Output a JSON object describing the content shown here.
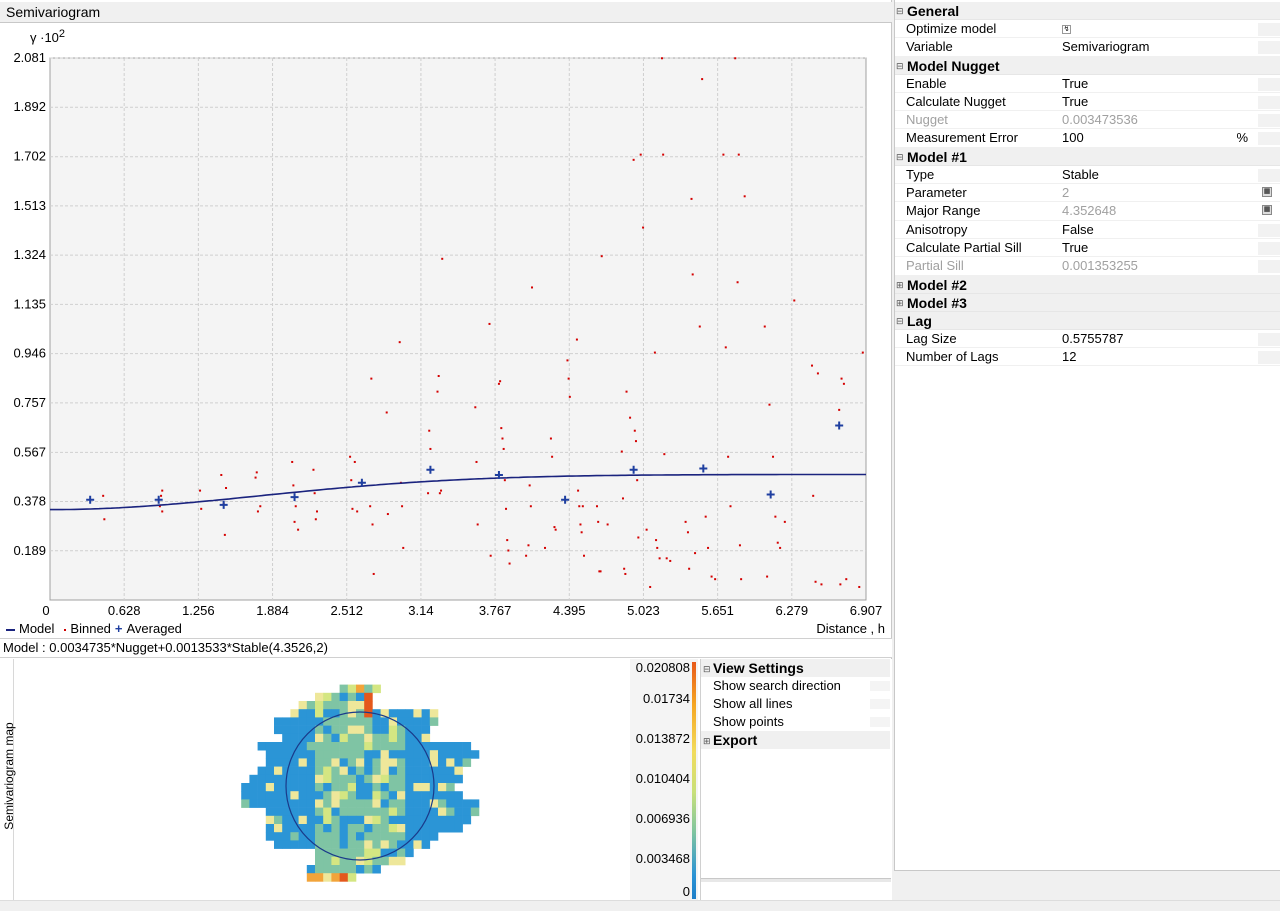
{
  "chart_title": "Semivariogram",
  "model_text": "Model : 0.0034735*Nugget+0.0013533*Stable(4.3526,2)",
  "chart_data": {
    "type": "scatter",
    "ylabel": "γ ·10",
    "ylabel_exp": "2",
    "xlabel": "Distance , h",
    "xlim": [
      0,
      6.907
    ],
    "ylim": [
      0,
      2.081
    ],
    "x_ticks": [
      "0",
      "0.628",
      "1.256",
      "1.884",
      "2.512",
      "3.14",
      "3.767",
      "4.395",
      "5.023",
      "5.651",
      "6.279",
      "6.907"
    ],
    "y_ticks": [
      "0.189",
      "0.378",
      "0.567",
      "0.757",
      "0.946",
      "1.135",
      "1.324",
      "1.513",
      "1.702",
      "1.892",
      "2.081"
    ],
    "legend": [
      "Model",
      "Binned",
      "Averaged"
    ],
    "averaged": [
      [
        0.34,
        0.385
      ],
      [
        0.92,
        0.385
      ],
      [
        1.47,
        0.365
      ],
      [
        2.07,
        0.395
      ],
      [
        2.64,
        0.45
      ],
      [
        3.22,
        0.5
      ],
      [
        3.8,
        0.48
      ],
      [
        4.36,
        0.385
      ],
      [
        4.94,
        0.5
      ],
      [
        5.53,
        0.505
      ],
      [
        6.1,
        0.405
      ],
      [
        6.68,
        0.67
      ]
    ],
    "model": {
      "nugget": 0.347,
      "partial_sill": 0.135,
      "range": 4.3526,
      "shape": 2
    },
    "binned": [
      [
        0.45,
        0.4
      ],
      [
        0.46,
        0.31
      ],
      [
        0.93,
        0.36
      ],
      [
        0.94,
        0.4
      ],
      [
        0.95,
        0.42
      ],
      [
        0.95,
        0.34
      ],
      [
        1.27,
        0.42
      ],
      [
        1.28,
        0.35
      ],
      [
        1.45,
        0.48
      ],
      [
        1.47,
        0.37
      ],
      [
        1.49,
        0.43
      ],
      [
        1.48,
        0.25
      ],
      [
        1.74,
        0.47
      ],
      [
        1.75,
        0.49
      ],
      [
        1.76,
        0.34
      ],
      [
        1.78,
        0.36
      ],
      [
        2.05,
        0.53
      ],
      [
        2.06,
        0.44
      ],
      [
        2.08,
        0.36
      ],
      [
        2.07,
        0.3
      ],
      [
        2.1,
        0.27
      ],
      [
        2.23,
        0.5
      ],
      [
        2.24,
        0.41
      ],
      [
        2.26,
        0.34
      ],
      [
        2.25,
        0.31
      ],
      [
        2.54,
        0.55
      ],
      [
        2.55,
        0.46
      ],
      [
        2.56,
        0.35
      ],
      [
        2.58,
        0.53
      ],
      [
        2.6,
        0.34
      ],
      [
        2.71,
        0.36
      ],
      [
        2.72,
        0.85
      ],
      [
        2.73,
        0.29
      ],
      [
        2.74,
        0.1
      ],
      [
        2.85,
        0.72
      ],
      [
        2.86,
        0.33
      ],
      [
        2.96,
        0.99
      ],
      [
        2.97,
        0.45
      ],
      [
        2.98,
        0.36
      ],
      [
        2.99,
        0.2
      ],
      [
        3.21,
        0.65
      ],
      [
        3.22,
        0.58
      ],
      [
        3.2,
        0.41
      ],
      [
        3.28,
        0.8
      ],
      [
        3.29,
        0.86
      ],
      [
        3.3,
        0.41
      ],
      [
        3.31,
        0.42
      ],
      [
        3.32,
        1.31
      ],
      [
        3.6,
        0.74
      ],
      [
        3.61,
        0.53
      ],
      [
        3.62,
        0.29
      ],
      [
        3.72,
        1.06
      ],
      [
        3.73,
        0.17
      ],
      [
        3.8,
        0.83
      ],
      [
        3.81,
        0.84
      ],
      [
        3.82,
        0.66
      ],
      [
        3.83,
        0.62
      ],
      [
        3.84,
        0.58
      ],
      [
        3.85,
        0.46
      ],
      [
        3.86,
        0.35
      ],
      [
        3.87,
        0.23
      ],
      [
        3.88,
        0.19
      ],
      [
        3.89,
        0.14
      ],
      [
        4.03,
        0.17
      ],
      [
        4.05,
        0.21
      ],
      [
        4.06,
        0.44
      ],
      [
        4.07,
        0.36
      ],
      [
        4.08,
        1.2
      ],
      [
        4.19,
        0.2
      ],
      [
        4.24,
        0.62
      ],
      [
        4.25,
        0.55
      ],
      [
        4.27,
        0.28
      ],
      [
        4.28,
        0.27
      ],
      [
        4.38,
        0.92
      ],
      [
        4.39,
        0.85
      ],
      [
        4.4,
        0.78
      ],
      [
        4.46,
        1.0
      ],
      [
        4.47,
        0.42
      ],
      [
        4.48,
        0.36
      ],
      [
        4.49,
        0.29
      ],
      [
        4.5,
        0.26
      ],
      [
        4.51,
        0.36
      ],
      [
        4.52,
        0.17
      ],
      [
        4.63,
        0.36
      ],
      [
        4.64,
        0.3
      ],
      [
        4.65,
        0.11
      ],
      [
        4.66,
        0.11
      ],
      [
        4.67,
        1.32
      ],
      [
        4.72,
        0.29
      ],
      [
        4.84,
        0.57
      ],
      [
        4.85,
        0.39
      ],
      [
        4.86,
        0.12
      ],
      [
        4.87,
        0.1
      ],
      [
        4.88,
        0.8
      ],
      [
        4.91,
        0.7
      ],
      [
        4.94,
        1.69
      ],
      [
        4.95,
        0.65
      ],
      [
        4.96,
        0.61
      ],
      [
        4.97,
        0.46
      ],
      [
        4.98,
        0.24
      ],
      [
        5.0,
        1.71
      ],
      [
        5.02,
        1.43
      ],
      [
        5.05,
        0.27
      ],
      [
        5.08,
        0.05
      ],
      [
        5.12,
        0.95
      ],
      [
        5.13,
        0.23
      ],
      [
        5.14,
        0.2
      ],
      [
        5.16,
        0.16
      ],
      [
        5.18,
        2.08
      ],
      [
        5.19,
        1.71
      ],
      [
        5.2,
        0.56
      ],
      [
        5.22,
        0.16
      ],
      [
        5.25,
        0.15
      ],
      [
        5.38,
        0.3
      ],
      [
        5.4,
        0.26
      ],
      [
        5.41,
        0.12
      ],
      [
        5.43,
        1.54
      ],
      [
        5.44,
        1.25
      ],
      [
        5.46,
        0.18
      ],
      [
        5.5,
        1.05
      ],
      [
        5.52,
        2.0
      ],
      [
        5.55,
        0.32
      ],
      [
        5.57,
        0.2
      ],
      [
        5.6,
        0.09
      ],
      [
        5.63,
        0.08
      ],
      [
        5.7,
        1.71
      ],
      [
        5.72,
        0.97
      ],
      [
        5.74,
        0.55
      ],
      [
        5.76,
        0.36
      ],
      [
        5.8,
        2.08
      ],
      [
        5.82,
        1.22
      ],
      [
        5.83,
        1.71
      ],
      [
        5.84,
        0.21
      ],
      [
        5.85,
        0.08
      ],
      [
        5.88,
        1.55
      ],
      [
        6.05,
        1.05
      ],
      [
        6.07,
        0.09
      ],
      [
        6.09,
        0.75
      ],
      [
        6.12,
        0.55
      ],
      [
        6.14,
        0.32
      ],
      [
        6.16,
        0.22
      ],
      [
        6.18,
        0.2
      ],
      [
        6.22,
        0.3
      ],
      [
        6.3,
        1.15
      ],
      [
        6.45,
        0.9
      ],
      [
        6.46,
        0.4
      ],
      [
        6.48,
        0.07
      ],
      [
        6.5,
        0.87
      ],
      [
        6.53,
        0.06
      ],
      [
        6.68,
        0.73
      ],
      [
        6.69,
        0.06
      ],
      [
        6.7,
        0.85
      ],
      [
        6.72,
        0.83
      ],
      [
        6.74,
        0.08
      ],
      [
        6.85,
        0.05
      ],
      [
        6.88,
        0.95
      ]
    ]
  },
  "map": {
    "ylabel": "Semivariogram map",
    "scale_labels": [
      "0.020808",
      "0.01734",
      "0.013872",
      "0.010404",
      "0.006936",
      "0.003468",
      "0"
    ],
    "colors": {
      "blue": "#2b95d6",
      "teal": "#7fc4a4",
      "yellow": "#d4e682",
      "lightyellow": "#eee79a",
      "orange": "#f2a43a",
      "red": "#e4581c"
    }
  },
  "view_settings": {
    "header": "View Settings",
    "items": [
      "Show search direction",
      "Show all lines",
      "Show points"
    ],
    "export_header": "Export"
  },
  "properties": {
    "general": {
      "title": "General",
      "optimize_label": "Optimize model",
      "variable_label": "Variable",
      "variable_value": "Semivariogram"
    },
    "nugget": {
      "title": "Model Nugget",
      "enable_label": "Enable",
      "enable_value": "True",
      "calc_label": "Calculate Nugget",
      "calc_value": "True",
      "nugget_label": "Nugget",
      "nugget_value": "0.003473536",
      "merr_label": "Measurement Error",
      "merr_value": "100",
      "merr_unit": "%"
    },
    "model1": {
      "title": "Model #1",
      "type_label": "Type",
      "type_value": "Stable",
      "param_label": "Parameter",
      "param_value": "2",
      "range_label": "Major Range",
      "range_value": "4.352648",
      "aniso_label": "Anisotropy",
      "aniso_value": "False",
      "cps_label": "Calculate Partial Sill",
      "cps_value": "True",
      "ps_label": "Partial Sill",
      "ps_value": "0.001353255"
    },
    "model2": {
      "title": "Model #2"
    },
    "model3": {
      "title": "Model #3"
    },
    "lag": {
      "title": "Lag",
      "size_label": "Lag Size",
      "size_value": "0.5755787",
      "num_label": "Number of Lags",
      "num_value": "12"
    }
  }
}
